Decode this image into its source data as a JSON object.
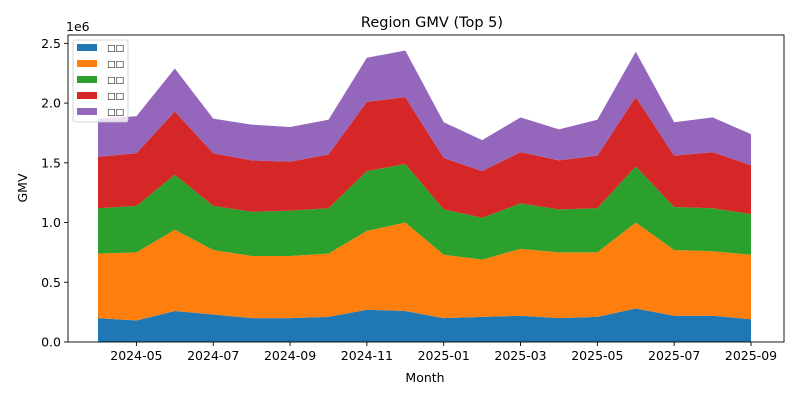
{
  "chart_data": {
    "type": "area",
    "stacked": true,
    "title": "Region GMV (Top 5)",
    "xlabel": "Month",
    "ylabel": "GMV",
    "y_offset_label": "1e6",
    "ylim": [
      0,
      2.57
    ],
    "grid": false,
    "legend_position": "top-left",
    "x": [
      "2024-04",
      "2024-05",
      "2024-06",
      "2024-07",
      "2024-08",
      "2024-09",
      "2024-10",
      "2024-11",
      "2024-12",
      "2025-01",
      "2025-02",
      "2025-03",
      "2025-04",
      "2025-05",
      "2025-06",
      "2025-07",
      "2025-08",
      "2025-09"
    ],
    "x_tick_labels": [
      "2024-05",
      "2024-07",
      "2024-09",
      "2024-11",
      "2025-01",
      "2025-03",
      "2025-05",
      "2025-07",
      "2025-09"
    ],
    "y_ticks": [
      0.0,
      0.5,
      1.0,
      1.5,
      2.0,
      2.5
    ],
    "y_tick_labels": [
      "0.0",
      "0.5",
      "1.0",
      "1.5",
      "2.0",
      "2.5"
    ],
    "series": [
      {
        "name": "□□",
        "color": "#1f77b4",
        "values": [
          0.2,
          0.18,
          0.26,
          0.23,
          0.2,
          0.2,
          0.21,
          0.27,
          0.26,
          0.2,
          0.21,
          0.22,
          0.2,
          0.21,
          0.28,
          0.22,
          0.22,
          0.19
        ]
      },
      {
        "name": "□□",
        "color": "#ff7f0e",
        "values": [
          0.54,
          0.57,
          0.68,
          0.54,
          0.52,
          0.52,
          0.53,
          0.66,
          0.74,
          0.53,
          0.48,
          0.56,
          0.55,
          0.54,
          0.72,
          0.55,
          0.54,
          0.54
        ]
      },
      {
        "name": "□□",
        "color": "#2ca02c",
        "values": [
          0.38,
          0.39,
          0.46,
          0.37,
          0.37,
          0.38,
          0.38,
          0.5,
          0.49,
          0.38,
          0.35,
          0.38,
          0.36,
          0.37,
          0.47,
          0.36,
          0.36,
          0.34
        ]
      },
      {
        "name": "□□",
        "color": "#d62728",
        "values": [
          0.43,
          0.44,
          0.53,
          0.44,
          0.43,
          0.41,
          0.45,
          0.58,
          0.56,
          0.43,
          0.39,
          0.43,
          0.41,
          0.44,
          0.58,
          0.43,
          0.47,
          0.41
        ]
      },
      {
        "name": "□□",
        "color": "#9467bd",
        "values": [
          0.32,
          0.31,
          0.36,
          0.29,
          0.3,
          0.29,
          0.29,
          0.37,
          0.39,
          0.3,
          0.26,
          0.29,
          0.26,
          0.3,
          0.38,
          0.28,
          0.29,
          0.26
        ]
      }
    ]
  }
}
